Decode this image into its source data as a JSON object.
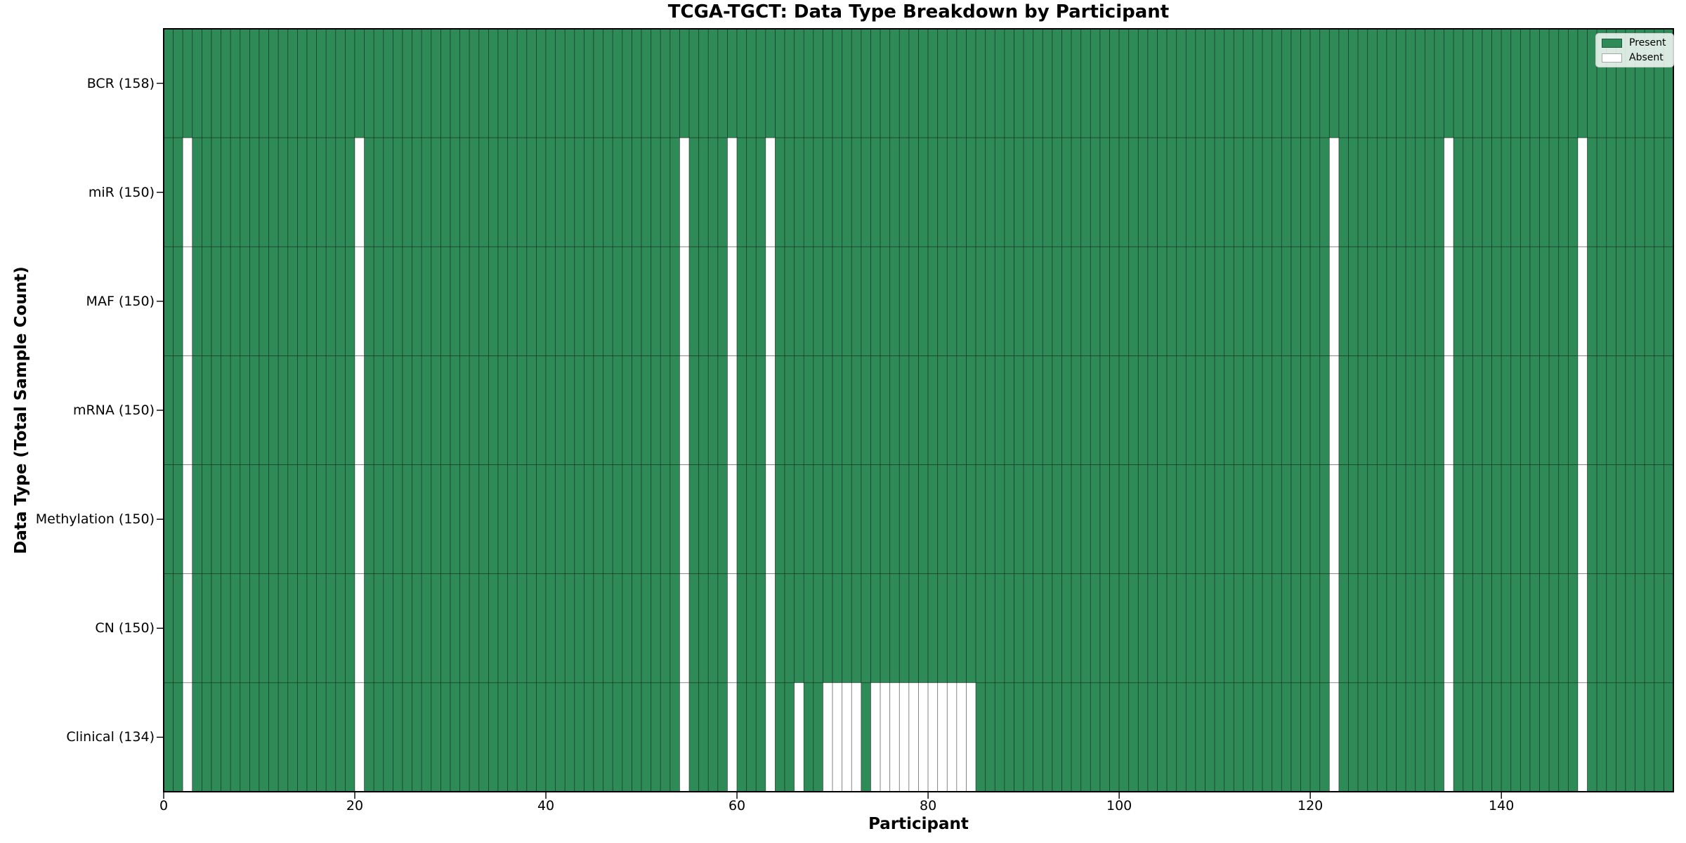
{
  "figure": {
    "title": "TCGA-TGCT: Data Type Breakdown by Participant",
    "xlabel": "Participant",
    "ylabel": "Data Type (Total Sample Count)"
  },
  "legend": {
    "items": [
      {
        "label": "Present",
        "color": "#2e8b57"
      },
      {
        "label": "Absent",
        "color": "#ffffff"
      }
    ]
  },
  "chart_data": {
    "type": "heatmap",
    "title": "TCGA-TGCT: Data Type Breakdown by Participant",
    "xlabel": "Participant",
    "ylabel": "Data Type (Total Sample Count)",
    "n_participants": 158,
    "xlim": [
      0,
      158
    ],
    "x_ticks": [
      0,
      20,
      40,
      60,
      80,
      100,
      120,
      140
    ],
    "grid": false,
    "legend_entries": [
      "Present",
      "Absent"
    ],
    "legend_position": "upper right",
    "colors": {
      "present": "#2e8b57",
      "absent": "#ffffff",
      "cell_edge": "#000000",
      "spine": "#000000"
    },
    "rows": [
      {
        "label": "BCR (158)",
        "name": "BCR",
        "present_count": 158,
        "absent_participants": []
      },
      {
        "label": "miR (150)",
        "name": "miR",
        "present_count": 150,
        "absent_participants": [
          2,
          20,
          54,
          59,
          63,
          122,
          134,
          148
        ]
      },
      {
        "label": "MAF (150)",
        "name": "MAF",
        "present_count": 150,
        "absent_participants": [
          2,
          20,
          54,
          59,
          63,
          122,
          134,
          148
        ]
      },
      {
        "label": "mRNA (150)",
        "name": "mRNA",
        "present_count": 150,
        "absent_participants": [
          2,
          20,
          54,
          59,
          63,
          122,
          134,
          148
        ]
      },
      {
        "label": "Methylation (150)",
        "name": "Methylation",
        "present_count": 150,
        "absent_participants": [
          2,
          20,
          54,
          59,
          63,
          122,
          134,
          148
        ]
      },
      {
        "label": "CN (150)",
        "name": "CN",
        "present_count": 150,
        "absent_participants": [
          2,
          20,
          54,
          59,
          63,
          122,
          134,
          148
        ]
      },
      {
        "label": "Clinical (134)",
        "name": "Clinical",
        "present_count": 134,
        "absent_participants": [
          2,
          20,
          54,
          59,
          63,
          66,
          69,
          70,
          71,
          72,
          74,
          75,
          76,
          77,
          78,
          79,
          80,
          81,
          82,
          83,
          84,
          122,
          134,
          148
        ]
      }
    ]
  }
}
